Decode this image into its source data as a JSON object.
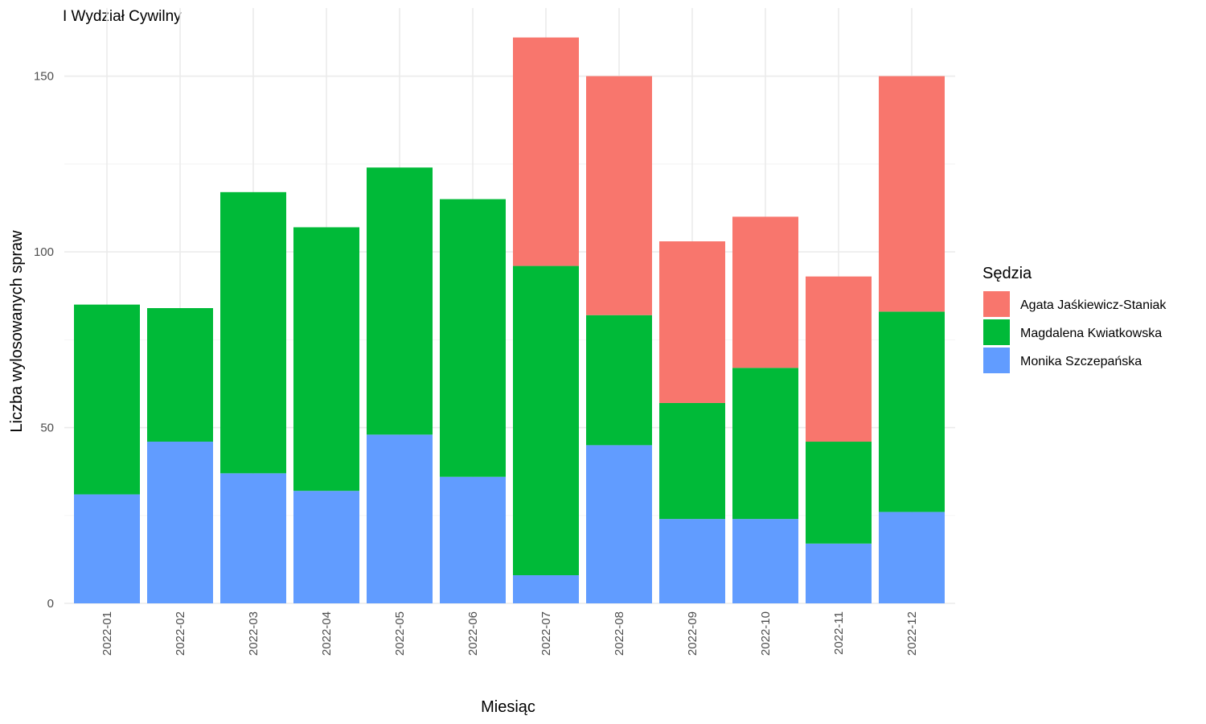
{
  "chart_data": {
    "type": "bar",
    "stacked": true,
    "title": "I Wydział Cywilny",
    "xlabel": "Miesiąc",
    "ylabel": "Liczba wylosowanych spraw",
    "ylim": [
      0,
      165
    ],
    "yticks": [
      0,
      50,
      100,
      150
    ],
    "grid": true,
    "legend": {
      "title": "Sędzia",
      "position": "right"
    },
    "categories": [
      "2022-01",
      "2022-02",
      "2022-03",
      "2022-04",
      "2022-05",
      "2022-06",
      "2022-07",
      "2022-08",
      "2022-09",
      "2022-10",
      "2022-11",
      "2022-12"
    ],
    "series": [
      {
        "name": "Monika Szczepańska",
        "color": "#619CFF",
        "values": [
          31,
          46,
          37,
          32,
          48,
          36,
          8,
          45,
          24,
          24,
          17,
          26
        ]
      },
      {
        "name": "Magdalena Kwiatkowska",
        "color": "#00BA38",
        "values": [
          54,
          38,
          80,
          75,
          76,
          79,
          88,
          37,
          33,
          43,
          29,
          57
        ]
      },
      {
        "name": "Agata Jaśkiewicz-Staniak",
        "color": "#F8766D",
        "values": [
          0,
          0,
          0,
          0,
          0,
          0,
          65,
          68,
          46,
          43,
          47,
          67
        ]
      }
    ],
    "legend_order": [
      "Agata Jaśkiewicz-Staniak",
      "Magdalena Kwiatkowska",
      "Monika Szczepańska"
    ]
  }
}
